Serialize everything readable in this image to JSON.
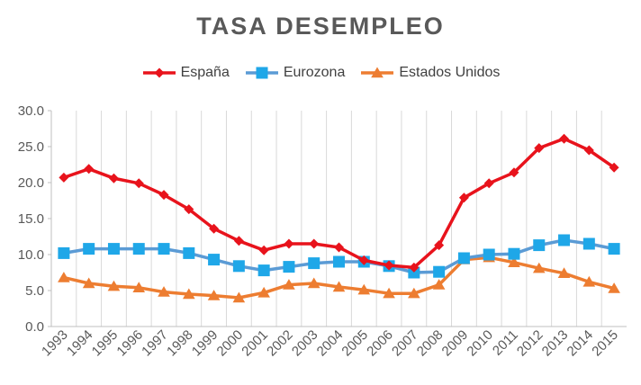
{
  "chart_data": {
    "type": "line",
    "title": "TASA DESEMPLEO",
    "xlabel": "",
    "ylabel": "",
    "ylim": [
      0,
      30
    ],
    "yticks": [
      "0.0",
      "5.0",
      "10.0",
      "15.0",
      "20.0",
      "25.0",
      "30.0"
    ],
    "grid": "vertical",
    "legend_position": "top",
    "categories": [
      "1993",
      "1994",
      "1995",
      "1996",
      "1997",
      "1998",
      "1999",
      "2000",
      "2001",
      "2002",
      "2003",
      "2004",
      "2005",
      "2006",
      "2007",
      "2008",
      "2009",
      "2010",
      "2011",
      "2012",
      "2013",
      "2014",
      "2015"
    ],
    "series": [
      {
        "name": "España",
        "color": "#E8131C",
        "marker": "diamond",
        "values": [
          20.7,
          21.9,
          20.6,
          19.9,
          18.3,
          16.3,
          13.6,
          11.9,
          10.6,
          11.5,
          11.5,
          11.0,
          9.2,
          8.5,
          8.2,
          11.3,
          17.9,
          19.9,
          21.4,
          24.8,
          26.1,
          24.5,
          22.1
        ]
      },
      {
        "name": "Eurozona",
        "color": "#5B9BD5",
        "marker_color": "#1FA7E8",
        "marker": "square",
        "values": [
          10.2,
          10.8,
          10.8,
          10.8,
          10.8,
          10.2,
          9.3,
          8.4,
          7.8,
          8.3,
          8.8,
          9.0,
          9.0,
          8.4,
          7.5,
          7.6,
          9.5,
          10.0,
          10.1,
          11.3,
          12.0,
          11.5,
          10.8
        ]
      },
      {
        "name": "Estados Unidos",
        "color": "#ED7D31",
        "marker": "triangle",
        "values": [
          6.8,
          6.0,
          5.6,
          5.4,
          4.8,
          4.5,
          4.3,
          4.0,
          4.7,
          5.8,
          6.0,
          5.5,
          5.1,
          4.6,
          4.6,
          5.8,
          9.3,
          9.6,
          8.9,
          8.1,
          7.4,
          6.2,
          5.3
        ]
      }
    ]
  }
}
